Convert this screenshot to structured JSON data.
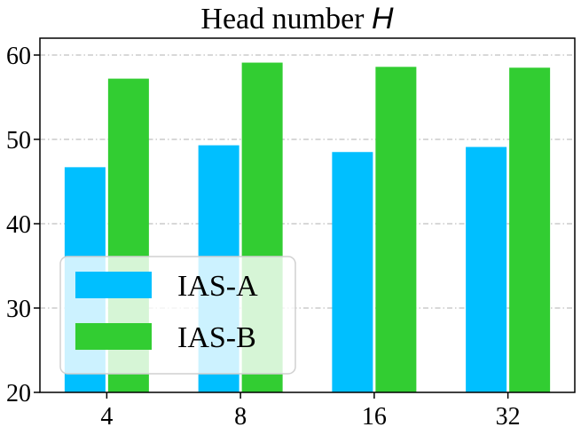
{
  "chart_data": {
    "type": "bar",
    "title": "Head number ",
    "title_var": "H",
    "categories": [
      "4",
      "8",
      "16",
      "32"
    ],
    "series": [
      {
        "name": "IAS-A",
        "color": "#00bfff",
        "values": [
          46.7,
          49.3,
          48.5,
          49.1
        ]
      },
      {
        "name": "IAS-B",
        "color": "#32cd32",
        "values": [
          57.2,
          59.1,
          58.6,
          58.5
        ]
      }
    ],
    "ylim": [
      20,
      62
    ],
    "yticks": [
      20,
      30,
      40,
      50,
      60
    ],
    "grid": true,
    "legend_position": "lower-left"
  }
}
